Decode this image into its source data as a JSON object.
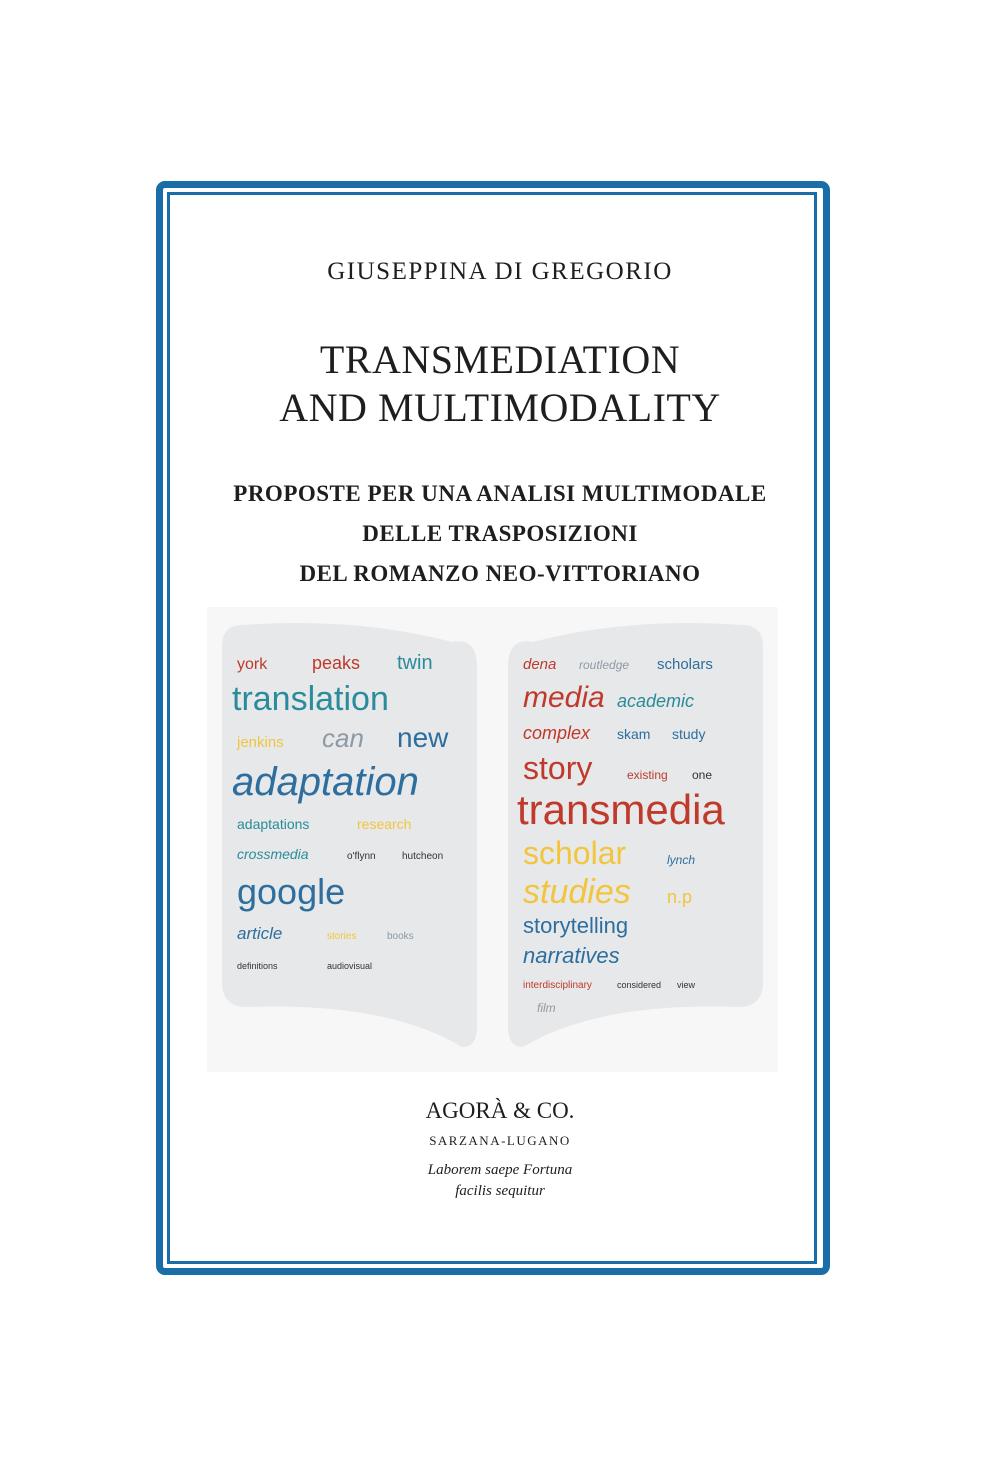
{
  "cover": {
    "author": "GIUSEPPINA DI GREGORIO",
    "title_lines": [
      "TRANSMEDIATION",
      "AND MULTIMODALITY"
    ],
    "subtitle_lines": [
      "PROPOSTE PER UNA ANALISI MULTIMODALE",
      "DELLE TRASPOSIZIONI",
      "DEL ROMANZO NEO-VITTORIANO"
    ],
    "publisher": "AGORÀ & CO.",
    "publisher_place": "SARZANA-LUGANO",
    "motto_lines": [
      "Laborem saepe Fortuna",
      "facilis sequitur"
    ],
    "frame_color": "#1a6ea8"
  },
  "word_cloud": {
    "left_page": [
      "translation",
      "adaptation",
      "google",
      "new",
      "york",
      "peaks",
      "twin",
      "jenkins",
      "can",
      "adaptations",
      "research",
      "article",
      "hutcheon",
      "crossmedia",
      "o'flynn",
      "definitions",
      "audiovisual",
      "stories",
      "books"
    ],
    "right_page": [
      "transmedia",
      "story",
      "scholar",
      "studies",
      "storytelling",
      "narratives",
      "media",
      "academic",
      "complex",
      "scholars",
      "routledge",
      "dena",
      "existing",
      "one",
      "skam",
      "study",
      "lynch",
      "interdisciplinary",
      "considered",
      "view",
      "film",
      "n.p"
    ],
    "colors": {
      "teal": "#2a8c9a",
      "red": "#c0392b",
      "yellow": "#f2c53d",
      "blue": "#2e6e9e",
      "gray": "#8e9aa3"
    }
  }
}
